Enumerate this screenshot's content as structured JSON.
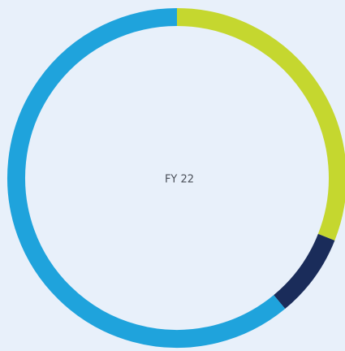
{
  "chart_data": {
    "type": "donut",
    "title": "FY 22",
    "values": [
      31,
      8,
      61
    ],
    "colors": [
      "#c5d72f",
      "#1a2c5a",
      "#1fa3dc"
    ]
  }
}
